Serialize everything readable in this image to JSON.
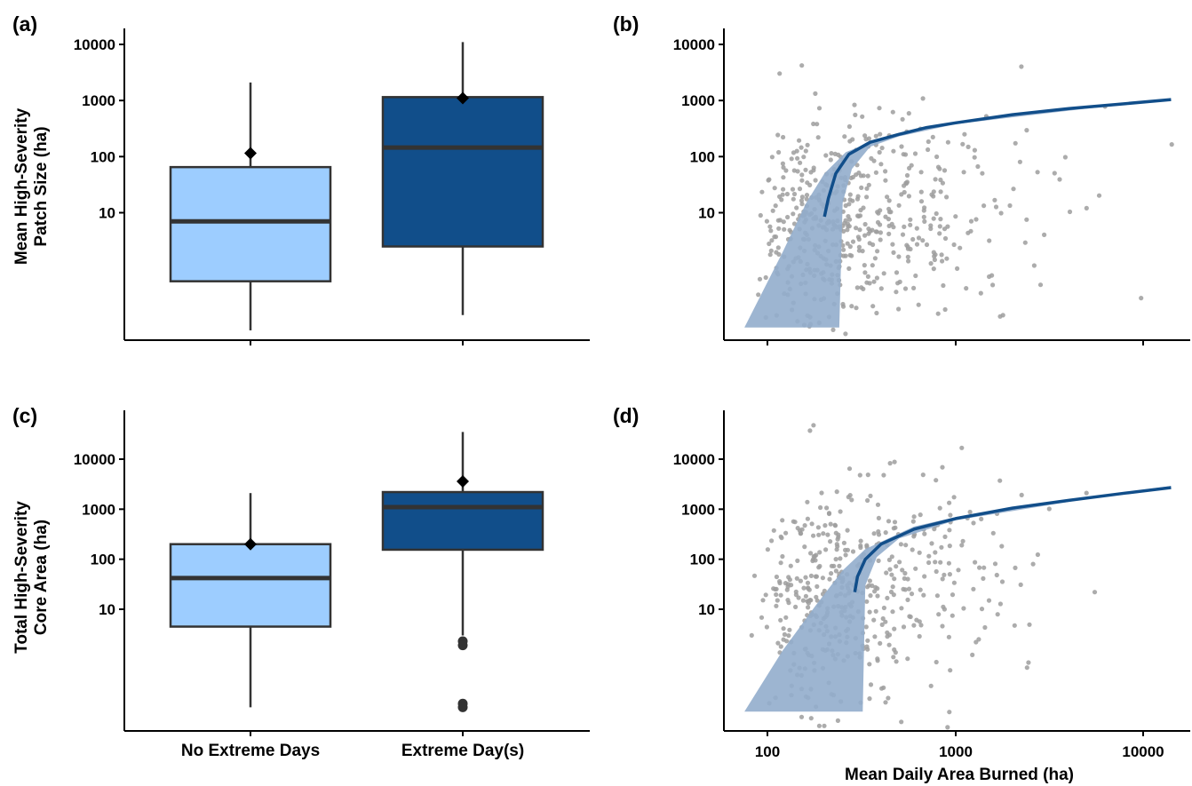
{
  "panels": {
    "a": "(a)",
    "b": "(b)",
    "c": "(c)",
    "d": "(d)"
  },
  "colors": {
    "no_extreme": "#9dcdff",
    "extreme": "#114e8a",
    "box_stroke": "#333333",
    "points": "#9e9e9e",
    "fit_line": "#114e8a",
    "ribbon": "#92adcc"
  },
  "axes": {
    "y_left_top": [
      "Mean High-Severity",
      "Patch Size (ha)"
    ],
    "y_left_bottom": [
      "Total High-Severity",
      "Core Area (ha)"
    ],
    "x_right_bottom": "Mean Daily Area Burned (ha)",
    "categories": [
      "No Extreme Days",
      "Extreme Day(s)"
    ],
    "y_ticks": [
      "10000",
      "1000",
      "100",
      "10"
    ],
    "x_ticks": [
      "100",
      "1000",
      "10000"
    ]
  },
  "chart_data": [
    {
      "panel": "a",
      "type": "box",
      "scale": "log",
      "ylabel": "Mean High-Severity Patch Size (ha)",
      "categories": [
        "No Extreme Days",
        "Extreme Day(s)"
      ],
      "boxes": [
        {
          "name": "No Extreme Days",
          "whisker_low": 0.08,
          "q1": 0.6,
          "median": 7,
          "q3": 65,
          "whisker_high": 2100,
          "mean": 115,
          "outliers": []
        },
        {
          "name": "Extreme Day(s)",
          "whisker_low": 0.15,
          "q1": 2.5,
          "median": 145,
          "q3": 1150,
          "whisker_high": 11000,
          "mean": 1100,
          "outliers": []
        }
      ],
      "y_ticks": [
        10,
        100,
        1000,
        10000
      ]
    },
    {
      "panel": "b",
      "type": "scatter",
      "scale": "log-log",
      "x_ticks": [
        100,
        1000,
        10000
      ],
      "y_ticks": [
        10,
        100,
        1000,
        10000
      ],
      "xlim": [
        45,
        15000
      ],
      "ylim": [
        0.09,
        18000
      ],
      "fit": [
        [
          200,
          8.5
        ],
        [
          210,
          18
        ],
        [
          230,
          50
        ],
        [
          270,
          110
        ],
        [
          350,
          180
        ],
        [
          500,
          250
        ],
        [
          700,
          330
        ],
        [
          1000,
          400
        ],
        [
          2000,
          560
        ],
        [
          4000,
          720
        ],
        [
          8000,
          880
        ],
        [
          14000,
          1040
        ]
      ],
      "ribbon_lower": [
        [
          240,
          0.09
        ],
        [
          250,
          15
        ],
        [
          280,
          60
        ],
        [
          350,
          150
        ],
        [
          500,
          230
        ],
        [
          1000,
          380
        ],
        [
          5000,
          720
        ],
        [
          14000,
          990
        ]
      ],
      "ribbon_upper": [
        [
          75,
          0.09
        ],
        [
          120,
          2
        ],
        [
          160,
          15
        ],
        [
          200,
          50
        ],
        [
          260,
          120
        ],
        [
          400,
          210
        ],
        [
          1000,
          420
        ],
        [
          5000,
          780
        ],
        [
          14000,
          1090
        ]
      ]
    },
    {
      "panel": "c",
      "type": "box",
      "scale": "log",
      "ylabel": "Total High-Severity Core Area (ha)",
      "categories": [
        "No Extreme Days",
        "Extreme Day(s)"
      ],
      "boxes": [
        {
          "name": "No Extreme Days",
          "whisker_low": 0.11,
          "q1": 4.5,
          "median": 42,
          "q3": 200,
          "whisker_high": 2100,
          "mean": 200,
          "outliers": []
        },
        {
          "name": "Extreme Day(s)",
          "whisker_low": 3,
          "q1": 155,
          "median": 1100,
          "q3": 2200,
          "whisker_high": 35000,
          "mean": 3600,
          "outliers": [
            2.3,
            1.9,
            0.13,
            0.11
          ]
        }
      ],
      "y_ticks": [
        10,
        100,
        1000,
        10000
      ]
    },
    {
      "panel": "d",
      "type": "scatter",
      "scale": "log-log",
      "xlabel": "Mean Daily Area Burned (ha)",
      "x_ticks": [
        100,
        1000,
        10000
      ],
      "y_ticks": [
        10,
        100,
        1000,
        10000
      ],
      "xlim": [
        45,
        15000
      ],
      "ylim": [
        0.09,
        70000
      ],
      "fit": [
        [
          290,
          22
        ],
        [
          300,
          45
        ],
        [
          330,
          100
        ],
        [
          400,
          200
        ],
        [
          600,
          400
        ],
        [
          1000,
          650
        ],
        [
          2000,
          1050
        ],
        [
          4000,
          1500
        ],
        [
          8000,
          2100
        ],
        [
          14000,
          2700
        ]
      ],
      "ribbon_lower": [
        [
          320,
          0.09
        ],
        [
          330,
          30
        ],
        [
          380,
          110
        ],
        [
          500,
          260
        ],
        [
          1000,
          600
        ],
        [
          5000,
          1600
        ],
        [
          14000,
          2600
        ]
      ],
      "ribbon_upper": [
        [
          75,
          0.09
        ],
        [
          120,
          1.5
        ],
        [
          180,
          12
        ],
        [
          250,
          60
        ],
        [
          330,
          160
        ],
        [
          600,
          450
        ],
        [
          1000,
          700
        ],
        [
          5000,
          1750
        ],
        [
          14000,
          2900
        ]
      ]
    }
  ]
}
